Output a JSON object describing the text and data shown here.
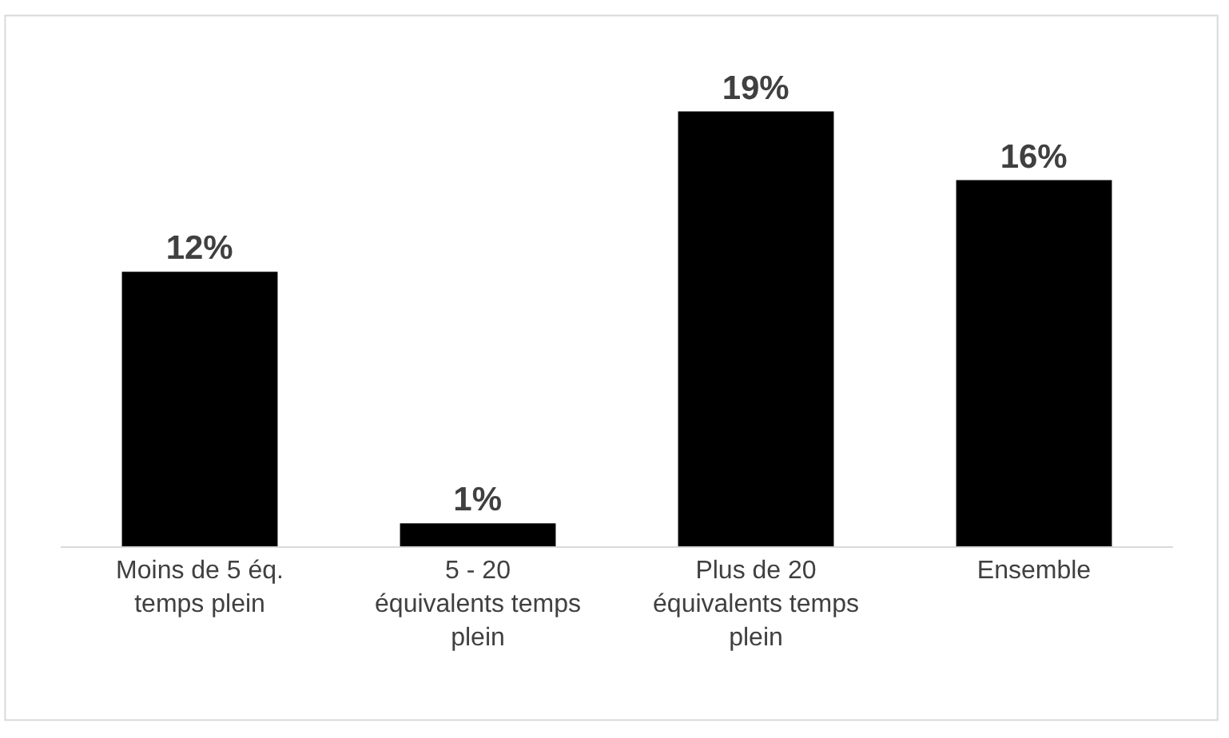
{
  "chart_data": {
    "type": "bar",
    "categories": [
      "Moins de 5 éq. temps plein",
      "5 - 20 équivalents temps plein",
      "Plus de 20 équivalents temps plein",
      "Ensemble"
    ],
    "values": [
      12,
      1,
      19,
      16
    ],
    "color": "#000000",
    "value_labels": [
      "12%",
      "1%",
      "19%",
      "16%"
    ],
    "grid": false
  }
}
